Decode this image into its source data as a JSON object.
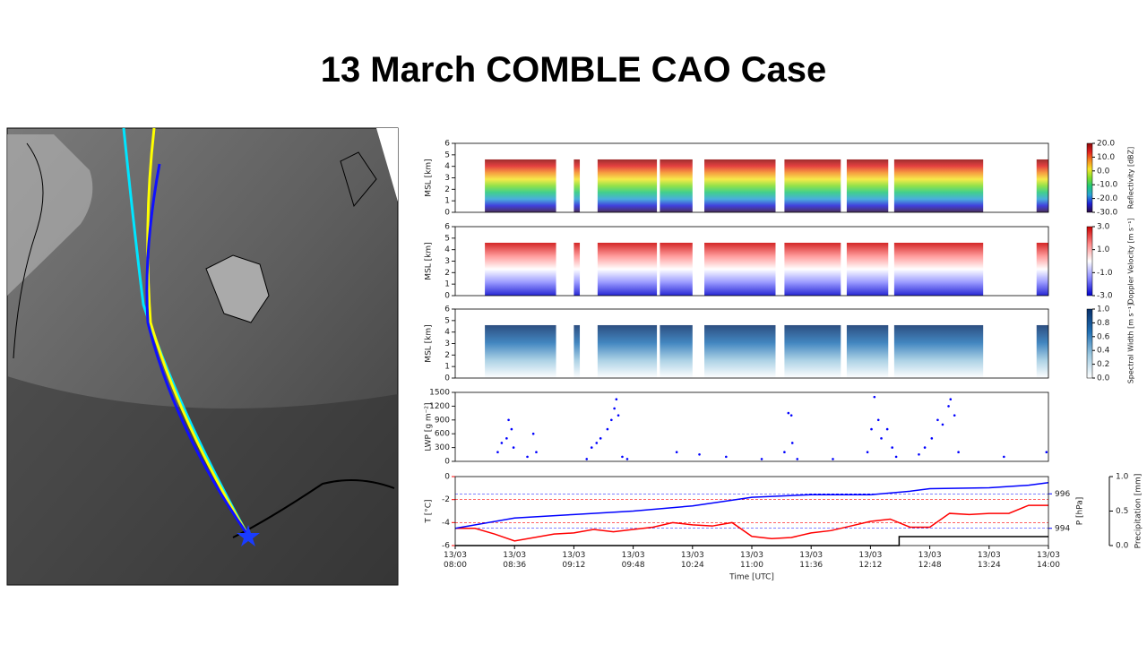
{
  "title": "13 March COMBLE CAO Case",
  "chart_data": [
    {
      "type": "heatmap",
      "ylabel": "MSL [km]",
      "xlim": [
        8,
        14
      ],
      "ylim": [
        0,
        6
      ],
      "yticks": [
        0,
        1,
        2,
        3,
        4,
        5,
        6
      ],
      "colorbar_label": "Reflectivity [dBZ]",
      "colorbar_lim": [
        -30,
        20
      ],
      "colorbar_ticks": [
        {
          "value": 20,
          "label": "20.0"
        },
        {
          "value": 10,
          "label": "10.0"
        },
        {
          "value": 0,
          "label": "0.0"
        },
        {
          "value": -10,
          "label": "-10.0"
        },
        {
          "value": -20,
          "label": "-20.0"
        },
        {
          "value": -30,
          "label": "-30.0"
        }
      ],
      "colors": [
        "#2b0a3d",
        "#1f1fd6",
        "#2aa0d6",
        "#1fc77a",
        "#7fdc2a",
        "#f5e62a",
        "#f58a1f",
        "#e01f1f",
        "#8b0a0a"
      ]
    },
    {
      "type": "heatmap",
      "ylabel": "MSL [km]",
      "xlim": [
        8,
        14
      ],
      "ylim": [
        0,
        6
      ],
      "yticks": [
        0,
        1,
        2,
        3,
        4,
        5,
        6
      ],
      "colorbar_label": "Doppler Velocity [m s⁻¹]",
      "colorbar_lim": [
        -3,
        3
      ],
      "colorbar_ticks": [
        {
          "value": 3,
          "label": "3.0"
        },
        {
          "value": 1,
          "label": "1.0"
        },
        {
          "value": -1,
          "label": "-1.0"
        },
        {
          "value": -3,
          "label": "-3.0"
        }
      ],
      "colors": [
        "#0000cc",
        "#8888ff",
        "#ffffff",
        "#ff8888",
        "#cc0000"
      ]
    },
    {
      "type": "heatmap",
      "ylabel": "MSL [km]",
      "xlim": [
        8,
        14
      ],
      "ylim": [
        0,
        6
      ],
      "yticks": [
        0,
        1,
        2,
        3,
        4,
        5,
        6
      ],
      "colorbar_label": "Spectral Width [m s⁻¹]",
      "colorbar_lim": [
        0,
        1
      ],
      "colorbar_ticks": [
        {
          "value": 1,
          "label": "1.0"
        },
        {
          "value": 0.8,
          "label": "0.8"
        },
        {
          "value": 0.6,
          "label": "0.6"
        },
        {
          "value": 0.4,
          "label": "0.4"
        },
        {
          "value": 0.2,
          "label": "0.2"
        },
        {
          "value": 0,
          "label": "0.0"
        }
      ],
      "colors": [
        "#ffffff",
        "#9ecae1",
        "#2171b5",
        "#08306b"
      ]
    },
    {
      "type": "scatter",
      "ylabel": "LWP [g m⁻²]",
      "xlim": [
        8,
        14
      ],
      "ylim": [
        0,
        1500
      ],
      "yticks": [
        0,
        300,
        600,
        900,
        1200,
        1500
      ],
      "color": "#0000ff",
      "x": [
        8.43,
        8.47,
        8.52,
        8.54,
        8.57,
        8.59,
        8.73,
        8.79,
        8.82,
        9.33,
        9.38,
        9.43,
        9.47,
        9.54,
        9.58,
        9.61,
        9.63,
        9.65,
        9.69,
        9.74,
        10.24,
        10.47,
        10.74,
        11.1,
        11.33,
        11.37,
        11.4,
        11.41,
        11.46,
        11.82,
        12.17,
        12.21,
        12.24,
        12.28,
        12.31,
        12.37,
        12.42,
        12.46,
        12.69,
        12.75,
        12.82,
        12.88,
        12.93,
        12.99,
        13.01,
        13.05,
        13.09,
        13.55,
        13.98
      ],
      "values": [
        200,
        400,
        500,
        900,
        700,
        300,
        100,
        600,
        200,
        50,
        300,
        400,
        500,
        700,
        900,
        1150,
        1350,
        1000,
        100,
        50,
        200,
        150,
        100,
        50,
        200,
        1050,
        1000,
        400,
        50,
        50,
        200,
        700,
        1400,
        900,
        500,
        700,
        300,
        100,
        150,
        300,
        500,
        900,
        800,
        1200,
        1350,
        1000,
        200,
        100,
        200
      ]
    },
    {
      "type": "line",
      "xlabel": "Time [UTC]",
      "xlim": [
        8,
        14
      ],
      "xticks": [
        {
          "value": 8,
          "label": "13/03\n08:00"
        },
        {
          "value": 8.6,
          "label": "13/03\n08:36"
        },
        {
          "value": 9.2,
          "label": "13/03\n09:12"
        },
        {
          "value": 9.8,
          "label": "13/03\n09:48"
        },
        {
          "value": 10.4,
          "label": "13/03\n10:24"
        },
        {
          "value": 11,
          "label": "13/03\n11:00"
        },
        {
          "value": 11.6,
          "label": "13/03\n11:36"
        },
        {
          "value": 12.2,
          "label": "13/03\n12:12"
        },
        {
          "value": 12.8,
          "label": "13/03\n12:48"
        },
        {
          "value": 13.4,
          "label": "13/03\n13:24"
        },
        {
          "value": 14,
          "label": "13/03\n14:00"
        }
      ],
      "ylabel": "T [°C]",
      "ylim": [
        -6,
        0
      ],
      "yticks": [
        0,
        -2,
        -4,
        -6
      ],
      "y2label": "P [hPa]",
      "y2lim": [
        993,
        997
      ],
      "y2ticks": [
        994,
        996
      ],
      "y3label": "Precipitation [mm]",
      "y3lim": [
        0,
        1
      ],
      "y3ticks": [
        {
          "value": 0,
          "label": "0.0"
        },
        {
          "value": 0.5,
          "label": "0.5"
        },
        {
          "value": 1,
          "label": "1.0"
        }
      ],
      "series": [
        {
          "color": "#ff0000",
          "x": [
            8.0,
            8.2,
            8.4,
            8.6,
            8.8,
            9.0,
            9.2,
            9.4,
            9.6,
            9.8,
            10.0,
            10.2,
            10.4,
            10.6,
            10.8,
            11.0,
            11.2,
            11.4,
            11.6,
            11.8,
            12.0,
            12.2,
            12.4,
            12.6,
            12.8,
            13.0,
            13.2,
            13.4,
            13.6,
            13.8,
            14.0
          ],
          "values": [
            -4.5,
            -4.5,
            -5.0,
            -5.6,
            -5.3,
            -5.0,
            -4.9,
            -4.6,
            -4.8,
            -4.6,
            -4.4,
            -4.0,
            -4.2,
            -4.3,
            -4.0,
            -5.2,
            -5.4,
            -5.3,
            -4.9,
            -4.7,
            -4.3,
            -3.9,
            -3.7,
            -4.4,
            -4.4,
            -3.2,
            -3.3,
            -3.2,
            -3.2,
            -2.5,
            -2.5
          ]
        },
        {
          "color": "#0000ff",
          "axis": "y2",
          "x": [
            8.0,
            8.6,
            9.2,
            9.8,
            10.4,
            11.0,
            11.6,
            12.2,
            12.6,
            12.8,
            13.4,
            13.8,
            14.0
          ],
          "values": [
            994.0,
            994.6,
            994.8,
            995.0,
            995.3,
            995.8,
            995.95,
            995.95,
            996.15,
            996.3,
            996.35,
            996.5,
            996.65
          ]
        },
        {
          "color": "#000000",
          "axis": "y3",
          "x": [
            8.0,
            12.49,
            12.49,
            14.0
          ],
          "values": [
            0,
            0,
            0.13,
            0.13
          ]
        }
      ]
    }
  ]
}
